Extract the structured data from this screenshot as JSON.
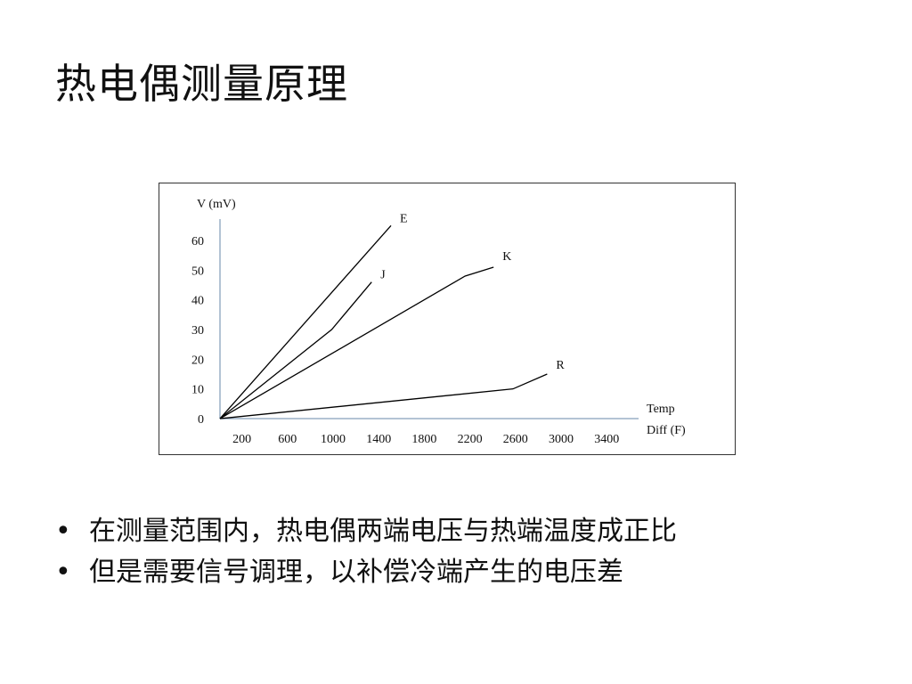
{
  "slide": {
    "title": "热电偶测量原理",
    "bullets": [
      "在测量范围内，热电偶两端电压与热端温度成正比",
      "但是需要信号调理，以补偿冷端产生的电压差"
    ]
  },
  "chart_data": {
    "type": "line",
    "title": "",
    "ylabel": "V (mV)",
    "xlabel": [
      "Temp",
      "Diff (F)"
    ],
    "y_ticks": [
      0,
      10,
      20,
      30,
      40,
      50,
      60
    ],
    "x_ticks": [
      200,
      600,
      1000,
      1400,
      1800,
      2200,
      2600,
      3000,
      3400
    ],
    "xlim": [
      0,
      3600
    ],
    "ylim": [
      0,
      66
    ],
    "grid": false,
    "axis_color": "#9aafc6",
    "line_color": "#000000",
    "series": [
      {
        "name": "E",
        "x": [
          0,
          1500
        ],
        "y": [
          0,
          65
        ]
      },
      {
        "name": "J",
        "x": [
          0,
          980,
          1330
        ],
        "y": [
          0,
          30,
          46
        ]
      },
      {
        "name": "K",
        "x": [
          0,
          2150,
          2400
        ],
        "y": [
          0,
          48,
          51
        ]
      },
      {
        "name": "R",
        "x": [
          0,
          2570,
          2870
        ],
        "y": [
          0,
          10,
          15
        ]
      }
    ]
  }
}
